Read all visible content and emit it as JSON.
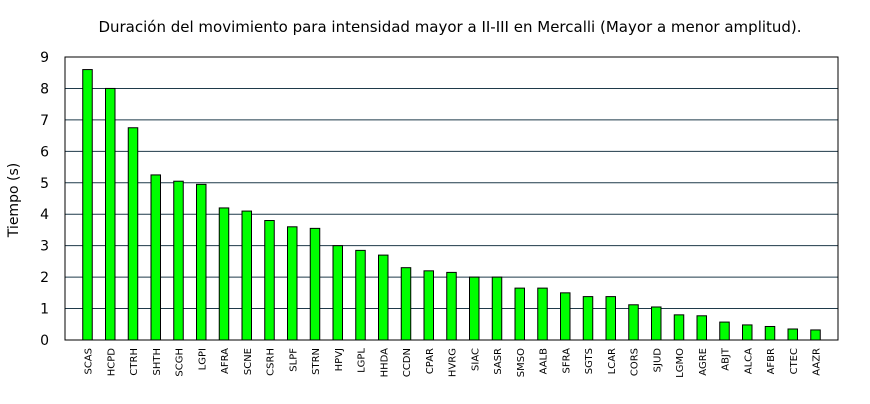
{
  "chart_data": {
    "type": "bar",
    "title": "Duración del movimiento para intensidad mayor a II-III en Mercalli (Mayor a menor amplitud).",
    "xlabel": "",
    "ylabel": "Tiempo (s)",
    "ylim": [
      0,
      9
    ],
    "yticks": [
      "0",
      "1",
      "2",
      "3",
      "4",
      "5",
      "6",
      "7",
      "8",
      "9"
    ],
    "grid": "horizontal",
    "legend": "none",
    "colors": {
      "bar_fill": "#00ff00",
      "bar_stroke": "#000000",
      "grid": "#1f3a4a",
      "frame": "#000000"
    },
    "categories": [
      "SCAS",
      "HCPD",
      "CTRH",
      "SHTH",
      "SCGH",
      "LGPI",
      "AFRA",
      "SCNE",
      "CSRH",
      "SLPF",
      "STRN",
      "HPVJ",
      "LGPL",
      "HHDA",
      "CCDN",
      "CPAR",
      "HVRG",
      "SIAC",
      "SASR",
      "SMSO",
      "AALB",
      "SFRA",
      "SGTS",
      "LCAR",
      "CORS",
      "SJUD",
      "LGMO",
      "AGRE",
      "ABJT",
      "ALCA",
      "AFBR",
      "CTEC",
      "AAZR"
    ],
    "values": [
      8.6,
      8.0,
      6.75,
      5.25,
      5.05,
      4.95,
      4.2,
      4.1,
      3.8,
      3.6,
      3.55,
      3.0,
      2.85,
      2.7,
      2.3,
      2.2,
      2.15,
      2.0,
      2.0,
      1.65,
      1.65,
      1.5,
      1.38,
      1.38,
      1.12,
      1.05,
      0.8,
      0.77,
      0.57,
      0.48,
      0.43,
      0.35,
      0.32
    ]
  }
}
